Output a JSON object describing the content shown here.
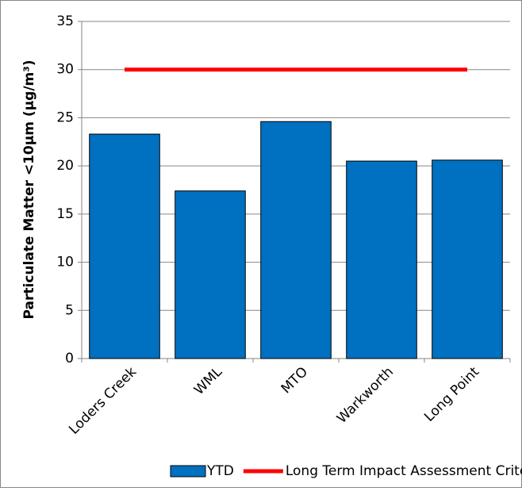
{
  "chart_data": {
    "type": "bar",
    "y_label": "Particulate Matter <10µm (µg/m³)",
    "categories": [
      "Loders Creek",
      "WML",
      "MTO",
      "Warkworth",
      "Long Point"
    ],
    "series": [
      {
        "name": "YTD",
        "type": "bar",
        "color": "#0070c0",
        "values": [
          23.3,
          17.4,
          24.6,
          20.5,
          20.6
        ]
      },
      {
        "name": "Long Term Impact Assessment Criteria",
        "type": "line",
        "color": "#ff0000",
        "values": [
          30,
          30,
          30,
          30,
          30
        ]
      }
    ],
    "ylim": [
      0,
      35
    ],
    "yticks": [
      0,
      5,
      10,
      15,
      20,
      25,
      30,
      35
    ],
    "grid": true,
    "legend": "bottom"
  }
}
